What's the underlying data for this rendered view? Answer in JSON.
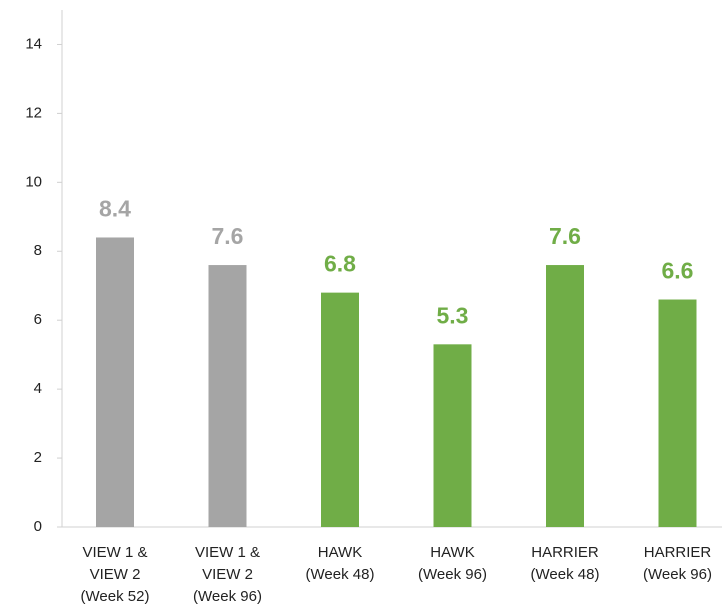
{
  "chart_data": {
    "type": "bar",
    "categories": [
      "VIEW 1 &\nVIEW 2\n(Week 52)",
      "VIEW 1 &\nVIEW 2\n(Week 96)",
      "HAWK\n(Week 48)",
      "HAWK\n(Week 96)",
      "HARRIER\n(Week 48)",
      "HARRIER\n(Week 96)"
    ],
    "values": [
      8.4,
      7.6,
      6.8,
      5.3,
      7.6,
      6.6
    ],
    "colors": [
      "#a5a5a5",
      "#a5a5a5",
      "#70ad47",
      "#70ad47",
      "#70ad47",
      "#70ad47"
    ],
    "ylim": [
      0,
      15
    ],
    "yticks": [
      0,
      2,
      4,
      6,
      8,
      10,
      12,
      14
    ],
    "grid": false
  }
}
